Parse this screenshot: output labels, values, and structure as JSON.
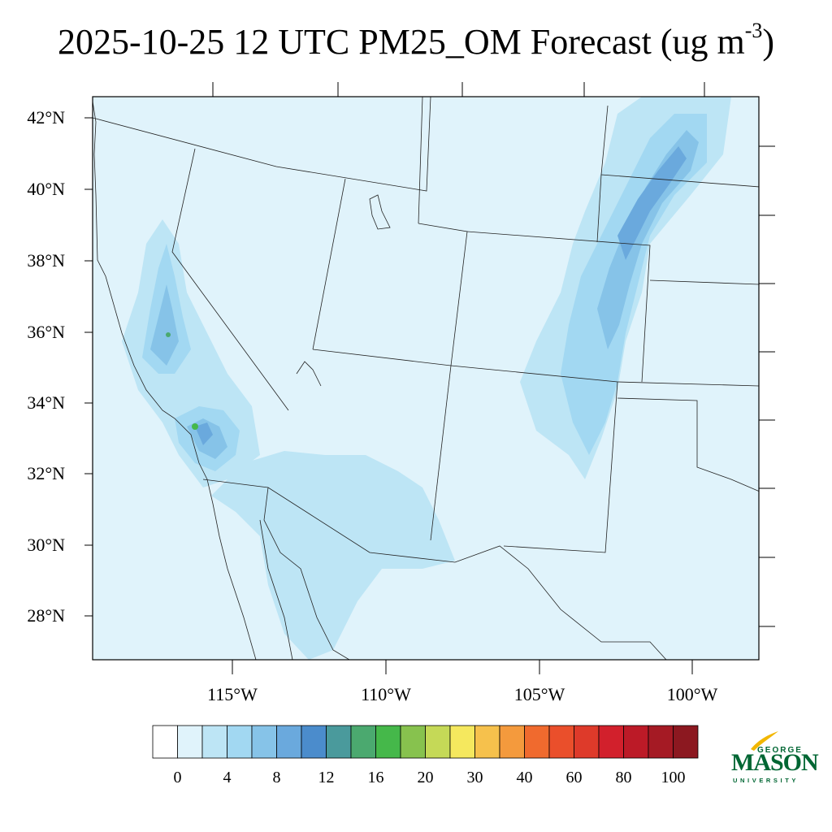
{
  "title": {
    "main": "2025-10-25 12 UTC PM25_OM Forecast (ug m",
    "exponent": "-3",
    "close": ")"
  },
  "map": {
    "region": "Southwestern United States and northern Mexico",
    "lat_ticks": [
      "42°N",
      "40°N",
      "38°N",
      "36°N",
      "34°N",
      "32°N",
      "30°N",
      "28°N"
    ],
    "lon_ticks": [
      "115°W",
      "110°W",
      "105°W",
      "100°W"
    ],
    "background_color": "#e0f3fb",
    "boundary_color": "#222222"
  },
  "colorbar": {
    "colors": [
      "#ffffff",
      "#e0f3fb",
      "#bde5f5",
      "#a2d8f2",
      "#86c3e8",
      "#6aa9dd",
      "#4b8ccc",
      "#4a9a9c",
      "#4ba96f",
      "#45b84a",
      "#87c24e",
      "#c5d957",
      "#f5e85e",
      "#f6c14c",
      "#f49a3d",
      "#f06a2e",
      "#ea4f2b",
      "#de3a2a",
      "#d2202c",
      "#bc1a27",
      "#a51a24",
      "#8c1820"
    ],
    "labels": [
      "0",
      "4",
      "8",
      "12",
      "16",
      "20",
      "30",
      "40",
      "60",
      "80",
      "100"
    ]
  },
  "logo": {
    "top": "GEORGE",
    "main": "MASON",
    "bottom": "UNIVERSITY",
    "color": "#006633",
    "accent": "#f2b700"
  }
}
